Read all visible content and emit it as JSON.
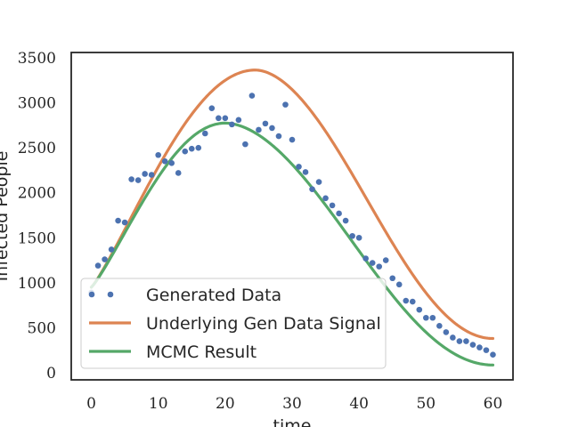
{
  "chart_data": {
    "type": "line",
    "xlabel": "time",
    "ylabel": "Infected People",
    "xlim": [
      -3,
      63
    ],
    "ylim": [
      -80,
      3560
    ],
    "xticks": [
      0,
      10,
      20,
      30,
      40,
      50,
      60
    ],
    "yticks": [
      0,
      500,
      1000,
      1500,
      2000,
      2500,
      3000,
      3500
    ],
    "grid": false,
    "legend_position": "lower-left",
    "colors": {
      "data": "#4c72b0",
      "signal": "#dd8452",
      "mcmc": "#55a868",
      "frame": "#262626"
    },
    "series": [
      {
        "name": "Generated Data",
        "kind": "scatter",
        "x": [
          0,
          1,
          2,
          3,
          4,
          5,
          6,
          7,
          8,
          9,
          10,
          11,
          12,
          13,
          14,
          15,
          16,
          17,
          18,
          19,
          20,
          21,
          22,
          23,
          24,
          25,
          26,
          27,
          28,
          29,
          30,
          31,
          32,
          33,
          34,
          35,
          36,
          37,
          38,
          39,
          40,
          41,
          42,
          43,
          44,
          45,
          46,
          47,
          48,
          49,
          50,
          51,
          52,
          53,
          54,
          55,
          56,
          57,
          58,
          59,
          60
        ],
        "y": [
          890,
          1190,
          1260,
          1370,
          1690,
          1670,
          2150,
          2140,
          2210,
          2200,
          2420,
          2350,
          2330,
          2220,
          2460,
          2490,
          2500,
          2660,
          2940,
          2830,
          2830,
          2760,
          2810,
          2540,
          3080,
          2700,
          2770,
          2720,
          2630,
          2980,
          2590,
          2290,
          2230,
          2040,
          2120,
          1940,
          1860,
          1770,
          1690,
          1520,
          1500,
          1270,
          1220,
          1180,
          1250,
          1050,
          980,
          800,
          790,
          700,
          610,
          610,
          520,
          450,
          390,
          350,
          350,
          310,
          280,
          250,
          200
        ]
      },
      {
        "name": "Underlying Gen Data Signal",
        "kind": "line",
        "peak_time": 24.5,
        "peak_value": 3365,
        "start_value": 950,
        "end_value": 380
      },
      {
        "name": "MCMC Result",
        "kind": "line",
        "peak_time": 20,
        "peak_value": 2775,
        "start_value": 950,
        "end_value": 85
      }
    ]
  }
}
